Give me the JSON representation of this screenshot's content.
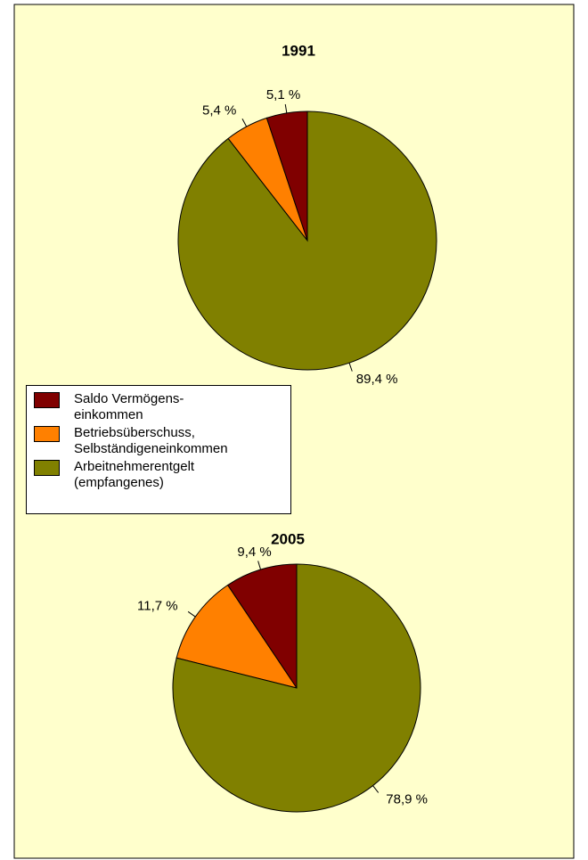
{
  "legend": {
    "labels": [
      "Saldo Vermögens-\neinkommen",
      "Betriebsüberschuss,\nSelbständigeneinkommen",
      "Arbeitnehmerentgelt\n(empfangenes)"
    ],
    "colors": [
      "#800000",
      "#ff8000",
      "#808000"
    ]
  },
  "chart_data": [
    {
      "type": "pie",
      "title": "1991",
      "values": [
        5.1,
        5.4,
        89.4
      ],
      "value_labels": [
        "5,1 %",
        "5,4 %",
        "89,4 %"
      ],
      "colors": [
        "#800000",
        "#ff8000",
        "#808000"
      ]
    },
    {
      "type": "pie",
      "title": "2005",
      "values": [
        9.4,
        11.7,
        78.9
      ],
      "value_labels": [
        "9,4 %",
        "11,7 %",
        "78,9 %"
      ],
      "colors": [
        "#800000",
        "#ff8000",
        "#808000"
      ]
    }
  ]
}
